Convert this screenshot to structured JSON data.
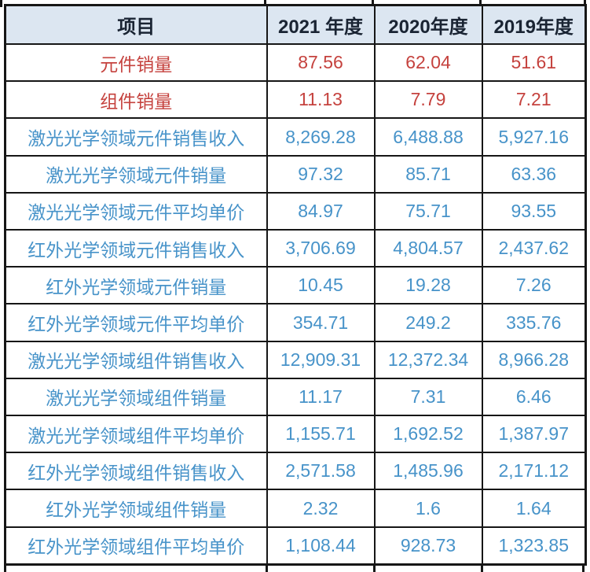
{
  "colors": {
    "header_bg": "#dce6f1",
    "header_text": "#1a2433",
    "highlight_red": "#c5423e",
    "data_blue": "#4793c9",
    "border": "#161616"
  },
  "chart_data": {
    "type": "table",
    "columns": [
      "项目",
      "2021 年度",
      "2020年度",
      "2019年度"
    ],
    "rows": [
      {
        "label": "元件销量",
        "values": [
          "87.56",
          "62.04",
          "51.61"
        ],
        "color": "red"
      },
      {
        "label": "组件销量",
        "values": [
          "11.13",
          "7.79",
          "7.21"
        ],
        "color": "red"
      },
      {
        "label": "激光光学领域元件销售收入",
        "values": [
          "8,269.28",
          "6,488.88",
          "5,927.16"
        ],
        "color": "blue"
      },
      {
        "label": "激光光学领域元件销量",
        "values": [
          "97.32",
          "85.71",
          "63.36"
        ],
        "color": "blue"
      },
      {
        "label": "激光光学领域元件平均单价",
        "values": [
          "84.97",
          "75.71",
          "93.55"
        ],
        "color": "blue"
      },
      {
        "label": "红外光学领域元件销售收入",
        "values": [
          "3,706.69",
          "4,804.57",
          "2,437.62"
        ],
        "color": "blue"
      },
      {
        "label": "红外光学领域元件销量",
        "values": [
          "10.45",
          "19.28",
          "7.26"
        ],
        "color": "blue"
      },
      {
        "label": "红外光学领域元件平均单价",
        "values": [
          "354.71",
          "249.2",
          "335.76"
        ],
        "color": "blue"
      },
      {
        "label": "激光光学领域组件销售收入",
        "values": [
          "12,909.31",
          "12,372.34",
          "8,966.28"
        ],
        "color": "blue"
      },
      {
        "label": "激光光学领域组件销量",
        "values": [
          "11.17",
          "7.31",
          "6.46"
        ],
        "color": "blue"
      },
      {
        "label": "激光光学领域组件平均单价",
        "values": [
          "1,155.71",
          "1,692.52",
          "1,387.97"
        ],
        "color": "blue"
      },
      {
        "label": "红外光学领域组件销售收入",
        "values": [
          "2,571.58",
          "1,485.96",
          "2,171.12"
        ],
        "color": "blue"
      },
      {
        "label": "红外光学领域组件销量",
        "values": [
          "2.32",
          "1.6",
          "1.64"
        ],
        "color": "blue"
      },
      {
        "label": "红外光学领域组件平均单价",
        "values": [
          "1,108.44",
          "928.73",
          "1,323.85"
        ],
        "color": "blue"
      }
    ]
  }
}
